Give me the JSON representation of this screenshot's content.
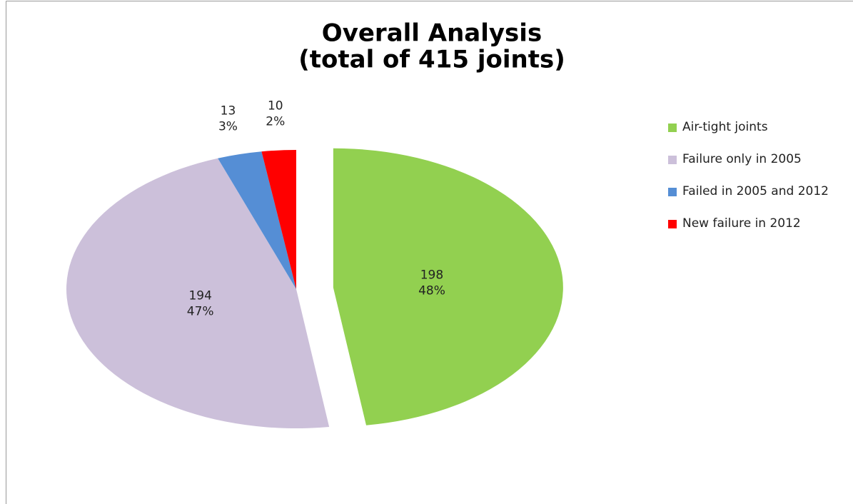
{
  "chart_data": {
    "type": "pie",
    "title": [
      "Overall Analysis",
      "(total of 415 joints)"
    ],
    "categories": [
      "Air-tight joints",
      "Failure only in 2005",
      "Failed in 2005 and 2012",
      "New failure in 2012"
    ],
    "values": [
      198,
      194,
      13,
      10
    ],
    "percent_labels": [
      "48%",
      "47%",
      "3%",
      "2%"
    ],
    "colors": [
      "#92d050",
      "#ccc0da",
      "#558ed5",
      "#ff0000"
    ],
    "exploded": [
      true,
      false,
      false,
      false
    ],
    "legend": "right"
  }
}
